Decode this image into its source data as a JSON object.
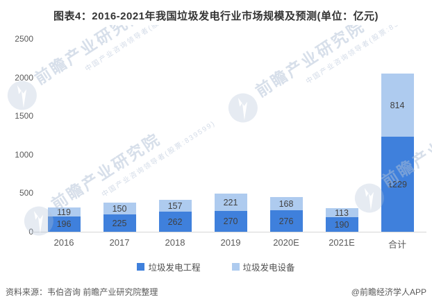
{
  "title": "图表4：2016-2021年我国垃圾发电行业市场规模及预测(单位：亿元)",
  "chart_data": {
    "type": "bar",
    "stacked": true,
    "title": "图表4：2016-2021年我国垃圾发电行业市场规模及预测",
    "unit": "亿元",
    "categories": [
      "2016",
      "2017",
      "2018",
      "2019",
      "2020E",
      "2021E",
      "合计"
    ],
    "series": [
      {
        "name": "垃圾发电工程",
        "color": "#3f80dc",
        "values": [
          196,
          225,
          262,
          270,
          276,
          190,
          1229
        ]
      },
      {
        "name": "垃圾发电设备",
        "color": "#aecbef",
        "values": [
          119,
          150,
          157,
          221,
          168,
          113,
          814
        ]
      }
    ],
    "ylim": [
      0,
      2500
    ],
    "yticks": [
      0,
      500,
      1000,
      1500,
      2000,
      2500
    ],
    "grid": false,
    "legend_position": "bottom",
    "data_labels": "inside"
  },
  "watermark": {
    "text": "前瞻产业研究院",
    "subtext": "中国产业咨询领导者(股票:839599)"
  },
  "footer": {
    "source": "资料来源：韦伯咨询 前瞻产业研究院整理",
    "credit": "@前瞻经济学人APP"
  }
}
